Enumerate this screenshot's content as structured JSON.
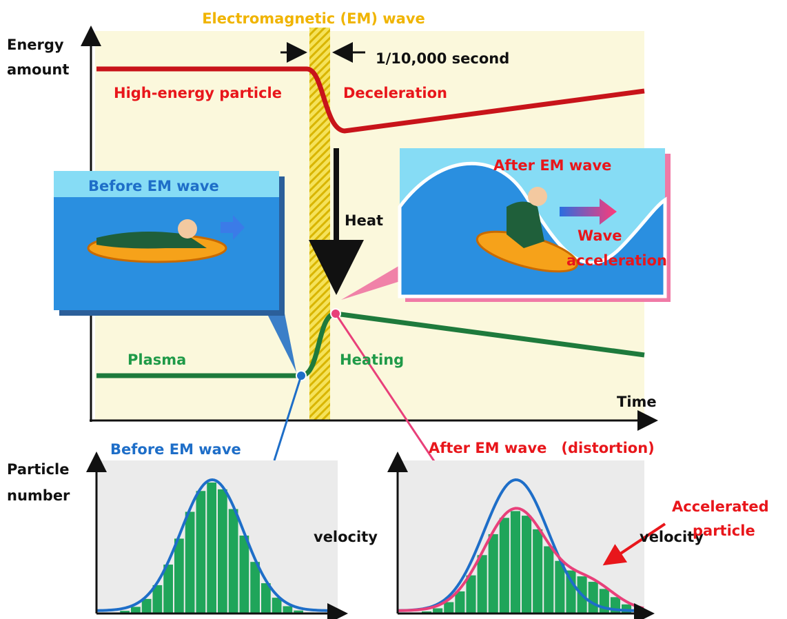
{
  "top_label": "Electromagnetic (EM) wave",
  "energy_axis": {
    "line1": "Energy",
    "line2": "amount"
  },
  "duration": "1/10,000 second",
  "high_energy": "High-energy particle",
  "deceleration": "Deceleration",
  "heat": "Heat",
  "before_panel": "Before EM wave",
  "after_panel": {
    "title": "After EM wave",
    "line1": "Wave",
    "line2": "acceleration"
  },
  "plasma": "Plasma",
  "heating": "Heating",
  "time_axis": "Time",
  "particle_axis": {
    "line1": "Particle",
    "line2": "number"
  },
  "before_hist": {
    "title": "Before EM wave",
    "x_label": "velocity"
  },
  "after_hist": {
    "title": "After EM wave　(distortion)",
    "x_label": "velocity"
  },
  "accelerated": {
    "line1": "Accelerated",
    "line2": "particle"
  }
}
